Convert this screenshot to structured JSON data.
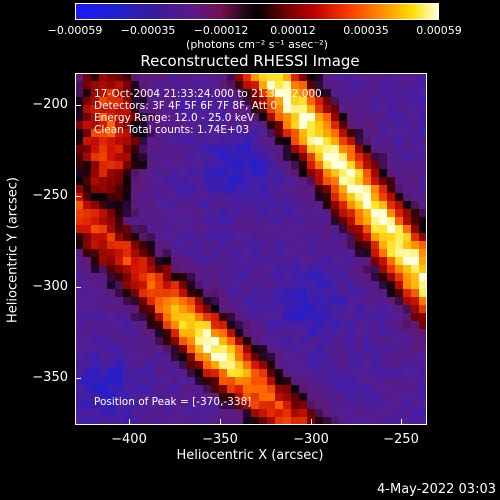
{
  "chart_data": {
    "type": "heatmap",
    "title": "Reconstructed RHESSI Image",
    "xlabel": "Heliocentric X (arcsec)",
    "ylabel": "Heliocentric Y (arcsec)",
    "xlim": [
      -432,
      -238
    ],
    "ylim": [
      -376,
      -182
    ],
    "x_ticks": [
      "−400",
      "−350",
      "−300",
      "−250"
    ],
    "x_tick_values": [
      -400,
      -350,
      -300,
      -250
    ],
    "y_ticks": [
      "−200",
      "−250",
      "−300",
      "−350"
    ],
    "y_tick_values": [
      -200,
      -250,
      -300,
      -350
    ],
    "colorbar": {
      "tick_labels": [
        "−0.00059",
        "−0.00035",
        "−0.00012",
        "0.00012",
        "0.00035",
        "0.00059"
      ],
      "range": [
        -0.00059,
        0.00059
      ],
      "units": "(photons cm⁻² s⁻¹ asec⁻²)"
    },
    "peak": [
      -370,
      -338
    ]
  },
  "info": {
    "time": "17-Oct-2004 21:33:24.000 to 21:35:52.000",
    "detectors": "Detectors: 3F 4F 5F 6F 7F 8F, Att 0",
    "energy": "Energy Range: 12.0 - 25.0 keV",
    "clean": "Clean    Total counts: 1.74E+03",
    "peak_text": "Position of Peak = [-370,-338]"
  },
  "timestamp": "4-May-2022 03:03"
}
